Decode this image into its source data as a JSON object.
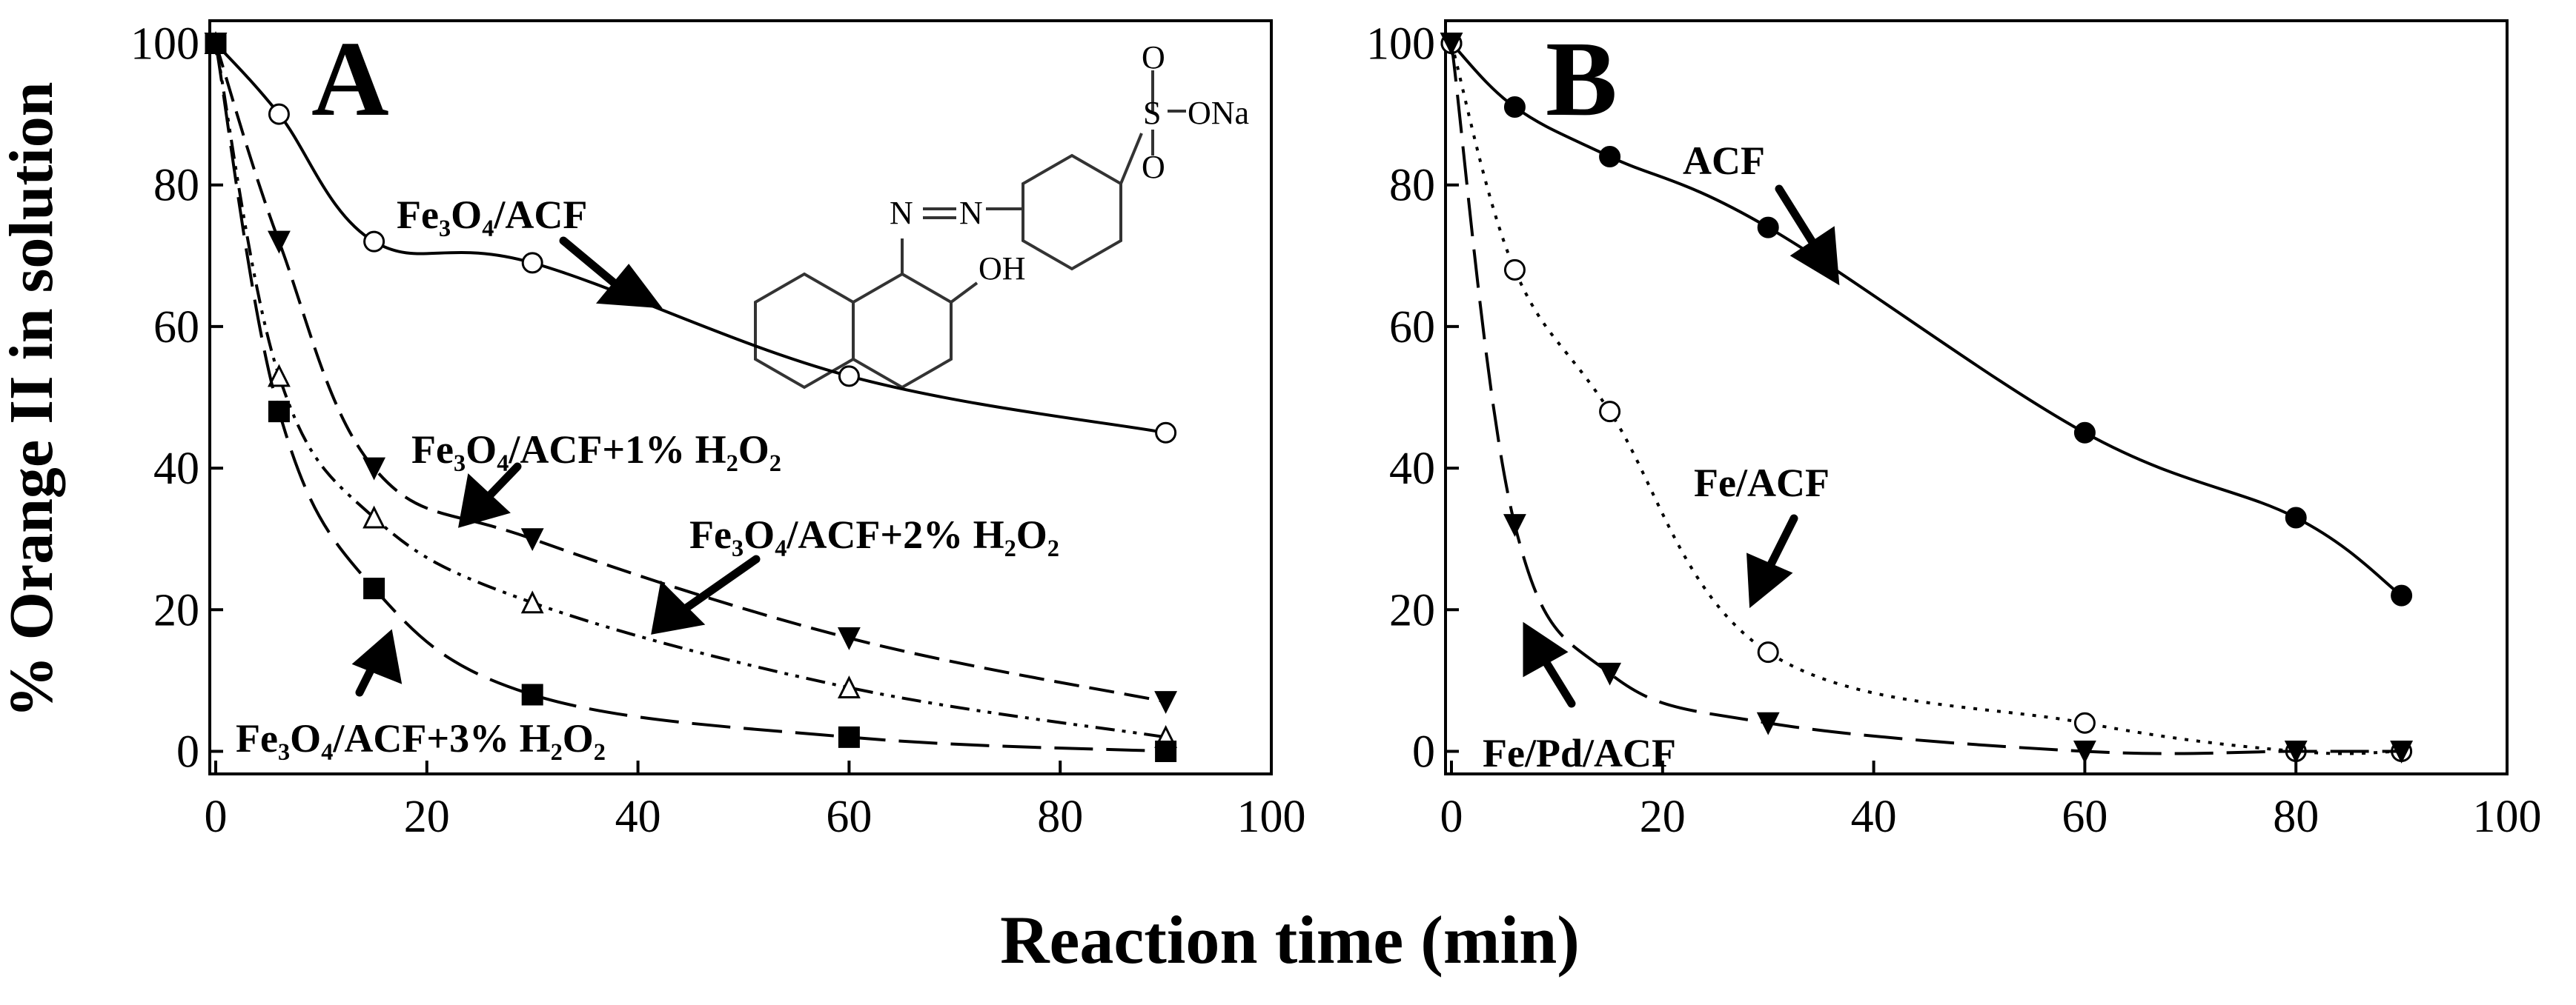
{
  "chart_data": [
    {
      "panel_label": "A",
      "type": "line",
      "xlim": [
        0,
        100
      ],
      "ylim": [
        0,
        100
      ],
      "xticks": [
        "0",
        "20",
        "40",
        "60",
        "80",
        "100"
      ],
      "yticks": [
        "0",
        "20",
        "40",
        "60",
        "80",
        "100"
      ],
      "grid": false,
      "series": [
        {
          "name": "Fe₃O₄/ACF",
          "marker": "open-circle",
          "line": "solid",
          "x": [
            0,
            6,
            15,
            30,
            60,
            90
          ],
          "y": [
            100,
            90,
            72,
            69,
            53,
            45
          ]
        },
        {
          "name": "Fe₃O₄/ACF+1% H₂O₂",
          "marker": "filled-triangle-down",
          "line": "dashed",
          "x": [
            0,
            6,
            15,
            30,
            60,
            90
          ],
          "y": [
            100,
            72,
            40,
            30,
            16,
            7
          ]
        },
        {
          "name": "Fe₃O₄/ACF+2% H₂O₂",
          "marker": "open-triangle-up",
          "line": "dash-dot-dot",
          "x": [
            0,
            6,
            15,
            30,
            60,
            90
          ],
          "y": [
            100,
            53,
            33,
            21,
            9,
            2
          ]
        },
        {
          "name": "Fe₃O₄/ACF+3% H₂O₂",
          "marker": "filled-square",
          "line": "long-dash",
          "x": [
            0,
            6,
            15,
            30,
            60,
            90
          ],
          "y": [
            100,
            48,
            23,
            8,
            2,
            0
          ]
        }
      ],
      "structure_labels": [
        "O",
        "S",
        "ONa",
        "O",
        "N",
        "N",
        "OH"
      ]
    },
    {
      "panel_label": "B",
      "type": "line",
      "xlim": [
        0,
        100
      ],
      "ylim": [
        0,
        100
      ],
      "xticks": [
        "0",
        "20",
        "40",
        "60",
        "80",
        "100"
      ],
      "yticks": [
        "0",
        "20",
        "40",
        "60",
        "80",
        "100"
      ],
      "grid": false,
      "series": [
        {
          "name": "ACF",
          "marker": "filled-circle",
          "line": "solid",
          "x": [
            0,
            6,
            15,
            30,
            60,
            80,
            90
          ],
          "y": [
            100,
            91,
            84,
            74,
            45,
            33,
            22
          ]
        },
        {
          "name": "Fe/ACF",
          "marker": "open-circle",
          "line": "dotted",
          "x": [
            0,
            6,
            15,
            30,
            60,
            80,
            90
          ],
          "y": [
            100,
            68,
            48,
            14,
            4,
            0,
            0
          ]
        },
        {
          "name": "Fe/Pd/ACF",
          "marker": "filled-triangle-down",
          "line": "long-dash",
          "x": [
            0,
            6,
            15,
            30,
            60,
            80,
            90
          ],
          "y": [
            100,
            32,
            11,
            4,
            0,
            0,
            0
          ]
        }
      ]
    }
  ],
  "shared": {
    "ylabel": "% Orange II in solution",
    "xlabel": "Reaction time (min)"
  }
}
